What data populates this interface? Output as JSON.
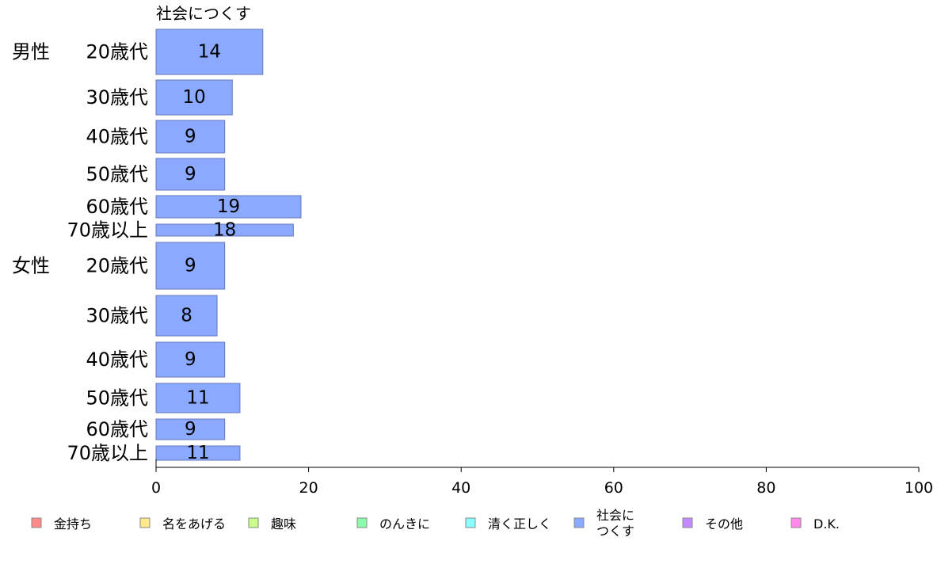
{
  "chart_data": {
    "type": "bar",
    "orientation": "horizontal",
    "series_title": "社会につくす",
    "xlim": [
      0,
      100
    ],
    "xticks": [
      "0",
      "20",
      "40",
      "60",
      "80",
      "100"
    ],
    "groups": [
      "男性",
      "女性"
    ],
    "categories": [
      {
        "group": "男性",
        "age": "20歳代",
        "value": 14
      },
      {
        "group": "",
        "age": "30歳代",
        "value": 10
      },
      {
        "group": "",
        "age": "40歳代",
        "value": 9
      },
      {
        "group": "",
        "age": "50歳代",
        "value": 9
      },
      {
        "group": "",
        "age": "60歳代",
        "value": 19
      },
      {
        "group": "",
        "age": "70歳以上",
        "value": 18
      },
      {
        "group": "女性",
        "age": "20歳代",
        "value": 9
      },
      {
        "group": "",
        "age": "30歳代",
        "value": 8
      },
      {
        "group": "",
        "age": "40歳代",
        "value": 9
      },
      {
        "group": "",
        "age": "50歳代",
        "value": 11
      },
      {
        "group": "",
        "age": "60歳代",
        "value": 9
      },
      {
        "group": "",
        "age": "70歳以上",
        "value": 11
      }
    ],
    "bar_color": "#8aa9ff",
    "bar_stroke": "#6677bb",
    "legend": [
      {
        "label": "金持ち",
        "color": "#ff8a8a"
      },
      {
        "label": "名をあげる",
        "color": "#ffe98a"
      },
      {
        "label": "趣味",
        "color": "#caff8a"
      },
      {
        "label": "のんきに",
        "color": "#8affaa"
      },
      {
        "label": "清く正しく",
        "color": "#8affff"
      },
      {
        "label": "社会に\nつくす",
        "color": "#8aa9ff"
      },
      {
        "label": "その他",
        "color": "#c38aff"
      },
      {
        "label": "D.K.",
        "color": "#ff8ae9"
      }
    ],
    "legend_position": "bottom"
  }
}
